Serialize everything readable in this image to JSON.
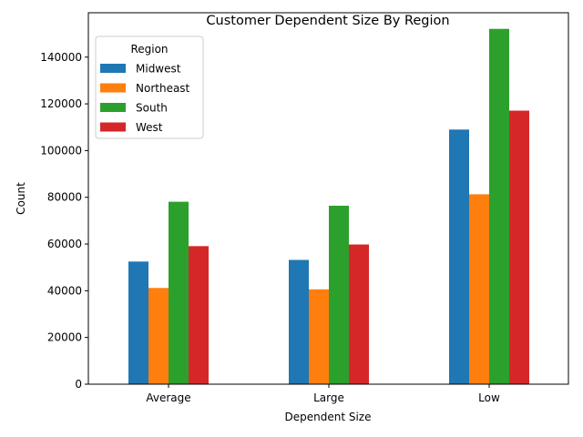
{
  "chart_data": {
    "type": "bar",
    "title": "Customer Dependent Size By Region",
    "xlabel": "Dependent Size",
    "ylabel": "Count",
    "categories": [
      "Average",
      "Large",
      "Low"
    ],
    "ylim": [
      0,
      159000
    ],
    "yticks": [
      0,
      20000,
      40000,
      60000,
      80000,
      100000,
      120000,
      140000
    ],
    "ytick_labels": [
      "0",
      "20000",
      "40000",
      "60000",
      "80000",
      "100000",
      "120000",
      "140000"
    ],
    "grid": false,
    "legend": {
      "title": "Region",
      "placement": "top-left"
    },
    "series": [
      {
        "name": "Midwest",
        "color": "#1f77b4",
        "values": [
          52500,
          53200,
          109000
        ]
      },
      {
        "name": "Northeast",
        "color": "#ff7f0e",
        "values": [
          41200,
          40600,
          81300
        ]
      },
      {
        "name": "South",
        "color": "#2ca02c",
        "values": [
          78100,
          76400,
          152100
        ]
      },
      {
        "name": "West",
        "color": "#d62728",
        "values": [
          59100,
          59800,
          117100
        ]
      }
    ]
  }
}
